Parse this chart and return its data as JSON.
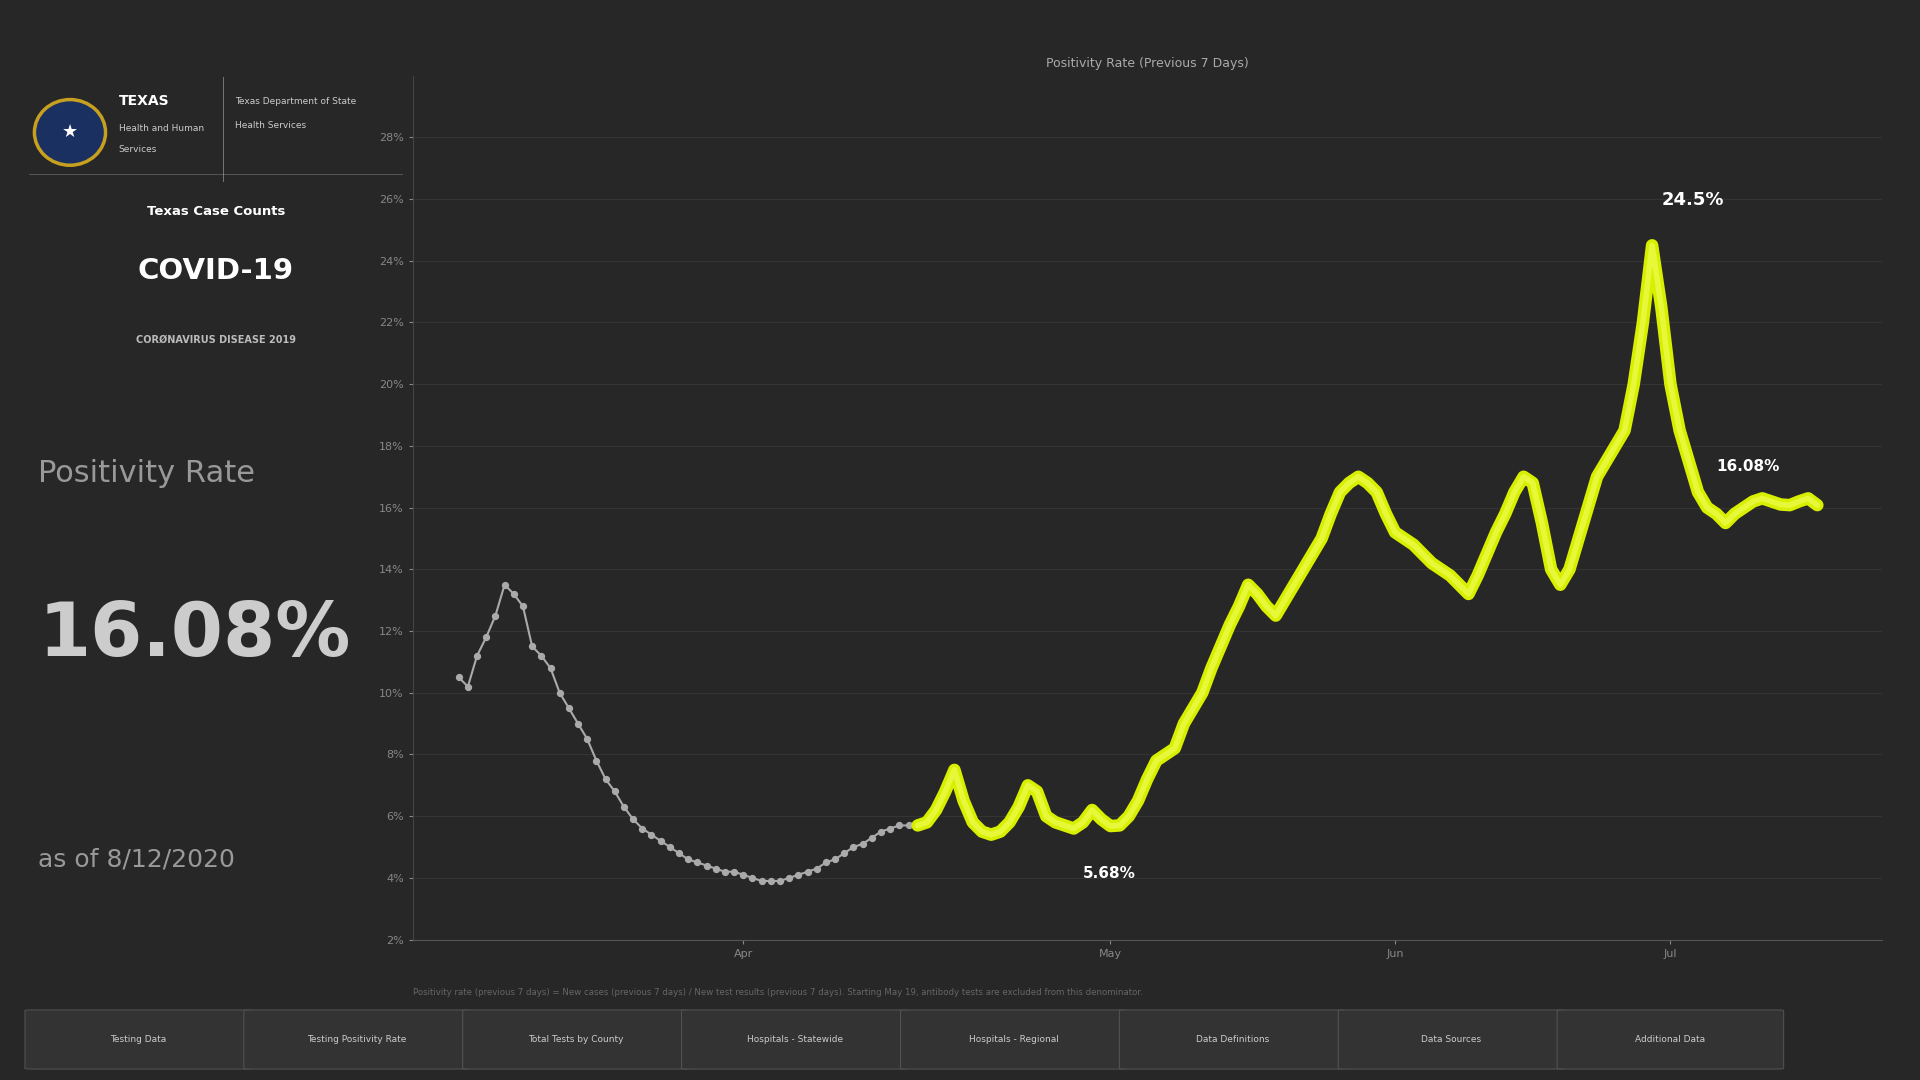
{
  "title": "Positivity Rate (Previous 7 Days)",
  "background_color": "#272727",
  "chart_bg": "#272727",
  "xlabels": [
    "Apr",
    "May",
    "Jun",
    "Jul"
  ],
  "positivity_rate": "16.08%",
  "date_label": "as of 8/12/2020",
  "positivity_label": "Positivity Rate",
  "annotation_min": "5.68%",
  "annotation_max": "24.5%",
  "annotation_end": "16.08%",
  "footer_text": "Positivity rate (previous 7 days) = New cases (previous 7 days) / New test results (previous 7 days). Starting May 19, antibody tests are excluded from this denominator.",
  "tabs": [
    "Testing Data",
    "Testing Positivity Rate",
    "Total Tests by County",
    "Hospitals - Statewide",
    "Hospitals - Regional",
    "Data Definitions",
    "Data Sources",
    "Additional Data"
  ],
  "gray_x": [
    0,
    1,
    2,
    3,
    4,
    5,
    6,
    7,
    8,
    9,
    10,
    11,
    12,
    13,
    14,
    15,
    16,
    17,
    18,
    19,
    20,
    21,
    22,
    23,
    24,
    25,
    26,
    27,
    28,
    29,
    30,
    31,
    32,
    33,
    34,
    35,
    36,
    37,
    38,
    39,
    40,
    41,
    42,
    43,
    44,
    45,
    46,
    47,
    48,
    49,
    50
  ],
  "gray_y": [
    10.5,
    10.2,
    11.2,
    11.8,
    12.5,
    13.5,
    13.2,
    12.8,
    11.5,
    11.2,
    10.8,
    10.0,
    9.5,
    9.0,
    8.5,
    7.8,
    7.2,
    6.8,
    6.3,
    5.9,
    5.6,
    5.4,
    5.2,
    5.0,
    4.8,
    4.6,
    4.5,
    4.4,
    4.3,
    4.2,
    4.2,
    4.1,
    4.0,
    3.9,
    3.9,
    3.9,
    4.0,
    4.1,
    4.2,
    4.3,
    4.5,
    4.6,
    4.8,
    5.0,
    5.1,
    5.3,
    5.5,
    5.6,
    5.7,
    5.7,
    5.7
  ],
  "yellow_x": [
    50,
    51,
    52,
    53,
    54,
    55,
    56,
    57,
    58,
    59,
    60,
    61,
    62,
    63,
    64,
    65,
    66,
    67,
    68,
    69,
    70,
    71,
    72,
    73,
    74,
    75,
    76,
    77,
    78,
    79,
    80,
    81,
    82,
    83,
    84,
    85,
    86,
    87,
    88,
    89,
    90,
    91,
    92,
    93,
    94,
    95,
    96,
    97,
    98,
    99,
    100,
    101,
    102,
    103,
    104,
    105,
    106,
    107,
    108,
    109,
    110,
    111,
    112,
    113,
    114,
    115,
    116,
    117,
    118,
    119,
    120,
    121,
    122,
    123,
    124,
    125,
    126,
    127,
    128,
    129,
    130,
    131,
    132,
    133,
    134,
    135,
    136,
    137,
    138,
    139,
    140,
    141,
    142,
    143,
    144,
    145,
    146,
    147,
    148
  ],
  "yellow_y": [
    5.7,
    5.8,
    6.2,
    6.8,
    7.5,
    6.5,
    5.8,
    5.5,
    5.4,
    5.5,
    5.8,
    6.3,
    7.0,
    6.8,
    6.0,
    5.8,
    5.7,
    5.6,
    5.8,
    6.2,
    5.9,
    5.68,
    5.7,
    6.0,
    6.5,
    7.2,
    7.8,
    8.0,
    8.2,
    9.0,
    9.5,
    10.0,
    10.8,
    11.5,
    12.2,
    12.8,
    13.5,
    13.2,
    12.8,
    12.5,
    13.0,
    13.5,
    14.0,
    14.5,
    15.0,
    15.8,
    16.5,
    16.8,
    17.0,
    16.8,
    16.5,
    15.8,
    15.2,
    15.0,
    14.8,
    14.5,
    14.2,
    14.0,
    13.8,
    13.5,
    13.2,
    13.8,
    14.5,
    15.2,
    15.8,
    16.5,
    17.0,
    16.8,
    15.5,
    14.0,
    13.5,
    14.0,
    15.0,
    16.0,
    17.0,
    17.5,
    18.0,
    18.5,
    20.0,
    22.0,
    24.5,
    22.5,
    20.0,
    18.5,
    17.5,
    16.5,
    16.0,
    15.8,
    15.5,
    15.8,
    16.0,
    16.2,
    16.3,
    16.2,
    16.1,
    16.08,
    16.2,
    16.3,
    16.08
  ]
}
